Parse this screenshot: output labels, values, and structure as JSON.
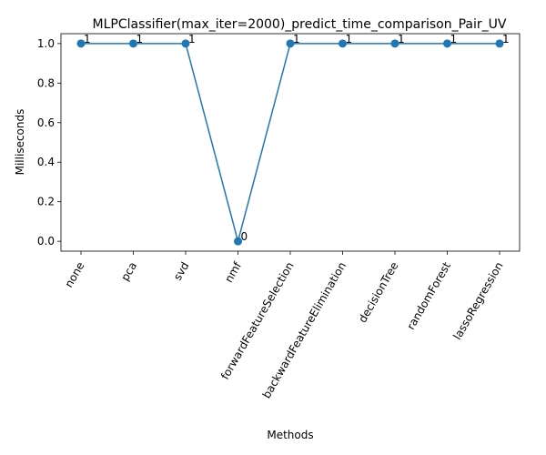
{
  "chart_data": {
    "type": "line",
    "title": "MLPClassifier(max_iter=2000)_predict_time_comparison_Pair_UV",
    "xlabel": "Methods",
    "ylabel": "Milliseconds",
    "categories": [
      "none",
      "pca",
      "svd",
      "nmf",
      "forwardFeatureSelection",
      "backwardFeatureElimination",
      "decisionTree",
      "randomForest",
      "lassoRegression"
    ],
    "values": [
      1,
      1,
      1,
      0,
      1,
      1,
      1,
      1,
      1
    ],
    "data_labels": [
      "1",
      "1",
      "1",
      "0",
      "1",
      "1",
      "1",
      "1",
      "1"
    ],
    "ylim": [
      -0.05,
      1.05
    ],
    "yticks": [
      0.0,
      0.2,
      0.4,
      0.6,
      0.8,
      1.0
    ],
    "ytick_labels": [
      "0.0",
      "0.2",
      "0.4",
      "0.6",
      "0.8",
      "1.0"
    ],
    "grid": false,
    "legend": "none",
    "line_color": "#1f77b4",
    "marker": "circle"
  }
}
